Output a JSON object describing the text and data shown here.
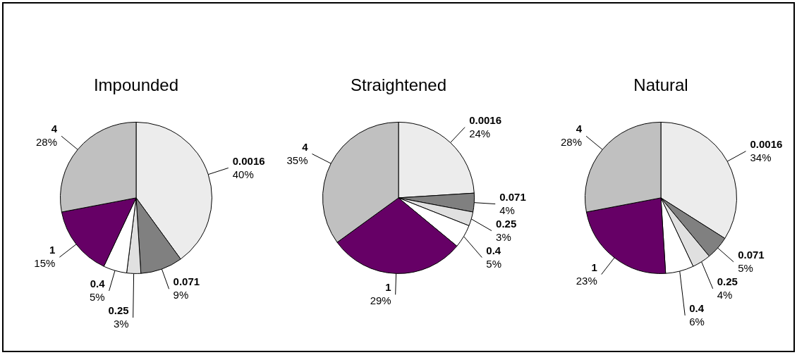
{
  "chart_data": [
    {
      "type": "pie",
      "title": "Impounded",
      "categories": [
        "0.0016",
        "0.071",
        "0.25",
        "0.4",
        "1",
        "4"
      ],
      "values": [
        40,
        9,
        3,
        5,
        15,
        28
      ],
      "value_labels": [
        "40%",
        "9%",
        "3%",
        "5%",
        "15%",
        "28%"
      ],
      "colors": [
        "#ececec",
        "#808080",
        "#e0e0e0",
        "#ffffff",
        "#660066",
        "#c0c0c0"
      ],
      "legend": false
    },
    {
      "type": "pie",
      "title": "Straightened",
      "categories": [
        "0.0016",
        "0.071",
        "0.25",
        "0.4",
        "1",
        "4"
      ],
      "values": [
        24,
        4,
        3,
        5,
        29,
        35
      ],
      "value_labels": [
        "24%",
        "4%",
        "3%",
        "5%",
        "29%",
        "35%"
      ],
      "colors": [
        "#ececec",
        "#808080",
        "#e0e0e0",
        "#ffffff",
        "#660066",
        "#c0c0c0"
      ],
      "legend": false
    },
    {
      "type": "pie",
      "title": "Natural",
      "categories": [
        "0.0016",
        "0.071",
        "0.25",
        "0.4",
        "1",
        "4"
      ],
      "values": [
        34,
        5,
        4,
        6,
        23,
        28
      ],
      "value_labels": [
        "34%",
        "5%",
        "4%",
        "6%",
        "23%",
        "28%"
      ],
      "colors": [
        "#ececec",
        "#808080",
        "#e0e0e0",
        "#ffffff",
        "#660066",
        "#c0c0c0"
      ],
      "legend": false
    }
  ]
}
